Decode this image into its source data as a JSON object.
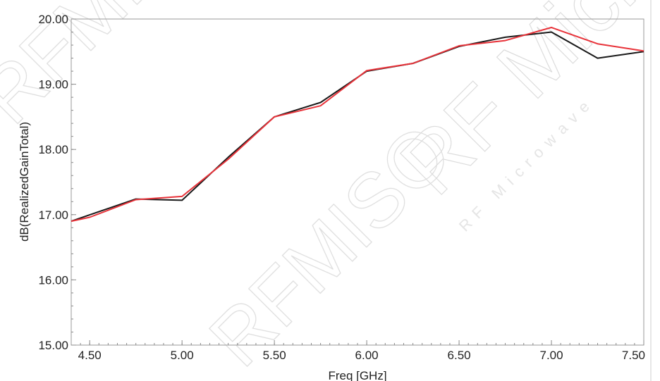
{
  "watermark": {
    "brand": "RFMISO",
    "logo": "RF Microwave"
  },
  "chart_data": {
    "type": "line",
    "title": "",
    "xlabel": "Freq [GHz]",
    "ylabel": "dB(RealizedGainTotal)",
    "xlim": [
      4.4,
      7.5
    ],
    "ylim": [
      15.0,
      20.0
    ],
    "xticks": [
      4.5,
      5.0,
      5.5,
      6.0,
      6.5,
      7.0,
      7.5
    ],
    "xtick_labels": [
      "4.50",
      "5.00",
      "5.50",
      "6.00",
      "6.50",
      "7.00",
      "7.50"
    ],
    "yticks": [
      15.0,
      16.0,
      17.0,
      18.0,
      19.0,
      20.0
    ],
    "ytick_labels": [
      "15.00",
      "16.00",
      "17.00",
      "18.00",
      "19.00",
      "20.00"
    ],
    "grid": false,
    "legend": "none",
    "series": [
      {
        "color": "#1a1a1a",
        "x": [
          4.4,
          4.75,
          5.0,
          5.25,
          5.5,
          5.75,
          6.0,
          6.25,
          6.5,
          6.75,
          7.0,
          7.25,
          7.5
        ],
        "values": [
          16.9,
          17.24,
          17.22,
          17.88,
          18.5,
          18.72,
          19.2,
          19.32,
          19.58,
          19.72,
          19.8,
          19.4,
          19.5
        ]
      },
      {
        "color": "#e8333a",
        "x": [
          4.4,
          4.5,
          4.75,
          5.0,
          5.25,
          5.5,
          5.75,
          6.0,
          6.25,
          6.5,
          6.75,
          7.0,
          7.25,
          7.5
        ],
        "values": [
          16.9,
          16.96,
          17.23,
          17.28,
          17.85,
          18.5,
          18.67,
          19.21,
          19.32,
          19.59,
          19.67,
          19.87,
          19.62,
          19.51
        ]
      }
    ]
  }
}
